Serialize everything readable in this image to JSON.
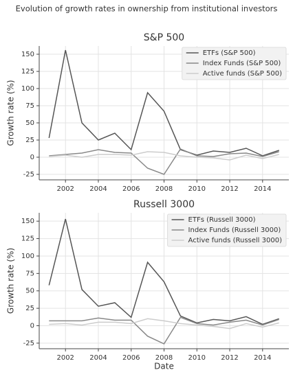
{
  "title": "Evolution of growth rates in ownership from institutional investors",
  "chart_data": [
    {
      "type": "line",
      "title": "S&P 500",
      "y_label": "Growth rate (%)",
      "x": [
        2001,
        2002,
        2003,
        2004,
        2005,
        2006,
        2007,
        2008,
        2009,
        2010,
        2011,
        2012,
        2013,
        2014,
        2015
      ],
      "series": [
        {
          "name": "ETFs (S&P 500)",
          "color": "#555555",
          "values": [
            28,
            156,
            50,
            25,
            35,
            11,
            94,
            67,
            11,
            3,
            9,
            7,
            13,
            2,
            10
          ]
        },
        {
          "name": "Index Funds (S&P 500)",
          "color": "#888888",
          "values": [
            2,
            4,
            6,
            11,
            7,
            6,
            -16,
            -25,
            12,
            2,
            1,
            5,
            6,
            1,
            8
          ]
        },
        {
          "name": "Active funds (S&P 500)",
          "color": "#cccccc",
          "values": [
            1,
            3,
            0,
            4,
            4,
            3,
            8,
            7,
            2,
            0,
            -1,
            -4,
            3,
            -2,
            4
          ]
        }
      ],
      "xlim": [
        2000.4,
        2015.6
      ],
      "xticks": [
        2002,
        2004,
        2006,
        2008,
        2010,
        2012,
        2014
      ],
      "ylim": [
        -33,
        162
      ],
      "yticks": [
        -25,
        0,
        25,
        50,
        75,
        100,
        125,
        150
      ],
      "grid": true,
      "legend": "upper right"
    },
    {
      "type": "line",
      "title": "Russell 3000",
      "y_label": "Growth rate (%)",
      "x_label": "Date",
      "x": [
        2001,
        2002,
        2003,
        2004,
        2005,
        2006,
        2007,
        2008,
        2009,
        2010,
        2011,
        2012,
        2013,
        2014,
        2015
      ],
      "series": [
        {
          "name": "ETFs (Russell 3000)",
          "color": "#555555",
          "values": [
            58,
            153,
            52,
            28,
            33,
            12,
            91,
            63,
            14,
            4,
            9,
            7,
            13,
            2,
            10
          ]
        },
        {
          "name": "Index Funds (Russell 3000)",
          "color": "#888888",
          "values": [
            7,
            7,
            7,
            11,
            8,
            8,
            -15,
            -26,
            12,
            3,
            1,
            5,
            8,
            1,
            9
          ]
        },
        {
          "name": "Active funds (Russell 3000)",
          "color": "#cccccc",
          "values": [
            2,
            3,
            1,
            5,
            5,
            3,
            10,
            7,
            3,
            1,
            -1,
            -4,
            3,
            -2,
            4
          ]
        }
      ],
      "xlim": [
        2000.4,
        2015.6
      ],
      "xticks": [
        2002,
        2004,
        2006,
        2008,
        2010,
        2012,
        2014
      ],
      "ylim": [
        -33,
        162
      ],
      "yticks": [
        -25,
        0,
        25,
        50,
        75,
        100,
        125,
        150
      ],
      "grid": true,
      "legend": "upper right"
    }
  ]
}
